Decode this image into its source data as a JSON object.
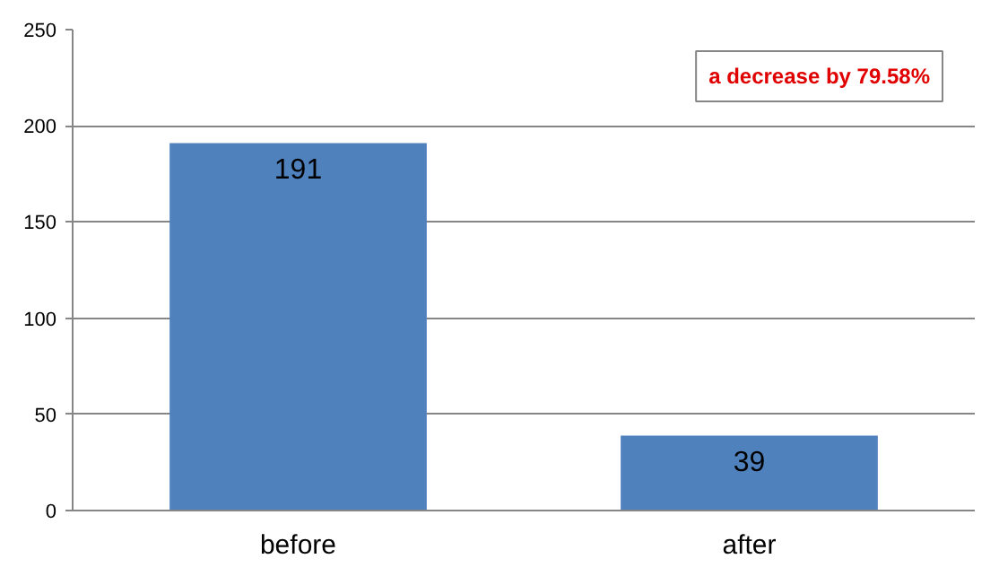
{
  "chart_data": {
    "type": "bar",
    "categories": [
      "before",
      "after"
    ],
    "values": [
      191,
      39
    ],
    "color": "#4f81bd",
    "ylim": [
      0,
      250
    ],
    "yticks": [
      0,
      50,
      100,
      150,
      200,
      250
    ],
    "grid": "y",
    "data_labels": true,
    "annotations": [
      "a decrease by 79.58%"
    ]
  }
}
